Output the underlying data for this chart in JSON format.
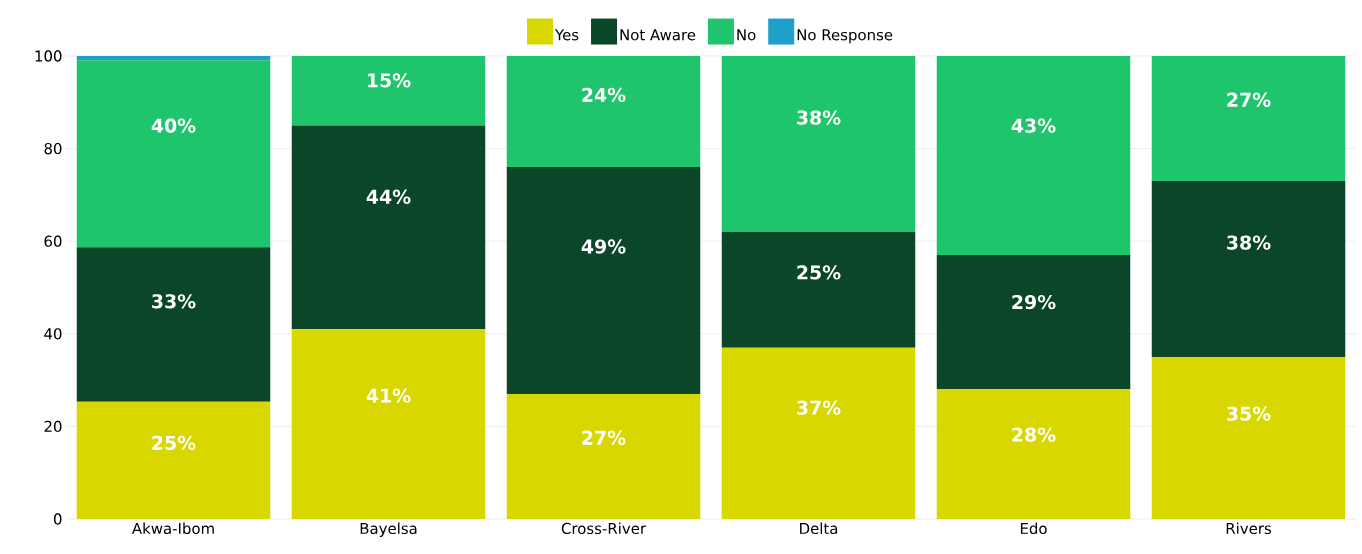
{
  "chart_data": {
    "type": "bar",
    "stacked": true,
    "categories": [
      "Akwa-Ibom",
      "Bayelsa",
      "Cross-River",
      "Delta",
      "Edo",
      "Rivers"
    ],
    "series": [
      {
        "name": "Yes",
        "color": "#d8d800",
        "values": [
          25.3,
          41,
          27,
          37,
          28,
          35
        ],
        "value_labels": [
          "25%",
          "41%",
          "27%",
          "37%",
          "28%",
          "35%"
        ]
      },
      {
        "name": "Not Aware",
        "color": "#0b4628",
        "values": [
          33.4,
          44,
          49,
          25,
          29,
          38
        ],
        "value_labels": [
          "33%",
          "44%",
          "49%",
          "25%",
          "29%",
          "38%"
        ]
      },
      {
        "name": "No",
        "color": "#1ec56d",
        "values": [
          40.4,
          15,
          24,
          38,
          43,
          27
        ],
        "value_labels": [
          "40%",
          "15%",
          "24%",
          "38%",
          "43%",
          "27%"
        ]
      },
      {
        "name": "No Response",
        "color": "#1fa0c8",
        "values": [
          0.9,
          0,
          0,
          0,
          0,
          0
        ],
        "value_labels": [
          null,
          null,
          null,
          null,
          null,
          null
        ]
      }
    ],
    "ylim": [
      0,
      100
    ],
    "yticks": [
      0,
      20,
      40,
      60,
      80,
      100
    ],
    "grid": "y",
    "legend": "top"
  }
}
